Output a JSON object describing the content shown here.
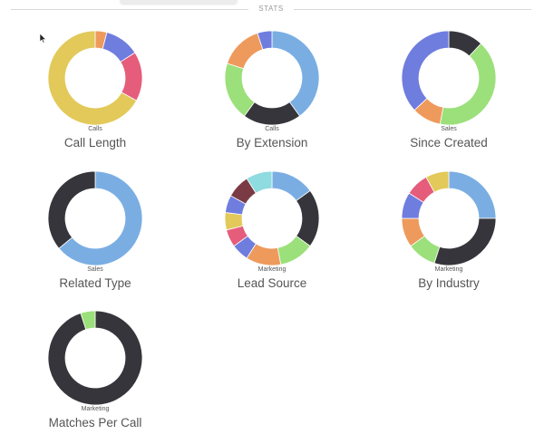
{
  "section": {
    "title": "STATS"
  },
  "colors": {
    "blue": "#7aaee3",
    "dark": "#36353b",
    "green": "#9be07a",
    "orange": "#ee9a5c",
    "indigo": "#6f7ddf",
    "pink": "#e55d7b",
    "yellow": "#e2c95a",
    "maroon": "#7a3b45",
    "cyan": "#8edbe0"
  },
  "charts": [
    {
      "id": "call-length",
      "label": "Calls",
      "title": "Call Length",
      "slices": [
        {
          "value": 0.04,
          "color": "#ee9a5c"
        },
        {
          "value": 0.12,
          "color": "#6f7ddf"
        },
        {
          "value": 0.17,
          "color": "#e55d7b"
        },
        {
          "value": 0.67,
          "color": "#e2c95a"
        }
      ]
    },
    {
      "id": "by-extension",
      "label": "Calls",
      "title": "By Extension",
      "slices": [
        {
          "value": 0.4,
          "color": "#7aaee3"
        },
        {
          "value": 0.2,
          "color": "#36353b"
        },
        {
          "value": 0.2,
          "color": "#9be07a"
        },
        {
          "value": 0.15,
          "color": "#ee9a5c"
        },
        {
          "value": 0.05,
          "color": "#6f7ddf"
        }
      ]
    },
    {
      "id": "since-created",
      "label": "Sales",
      "title": "Since Created",
      "slices": [
        {
          "value": 0.12,
          "color": "#36353b"
        },
        {
          "value": 0.41,
          "color": "#9be07a"
        },
        {
          "value": 0.1,
          "color": "#ee9a5c"
        },
        {
          "value": 0.37,
          "color": "#6f7ddf"
        }
      ]
    },
    {
      "id": "related-type",
      "label": "Sales",
      "title": "Related Type",
      "slices": [
        {
          "value": 0.64,
          "color": "#7aaee3"
        },
        {
          "value": 0.36,
          "color": "#36353b"
        }
      ]
    },
    {
      "id": "lead-source",
      "label": "Marketing",
      "title": "Lead Source",
      "slices": [
        {
          "value": 0.15,
          "color": "#7aaee3"
        },
        {
          "value": 0.2,
          "color": "#36353b"
        },
        {
          "value": 0.12,
          "color": "#9be07a"
        },
        {
          "value": 0.12,
          "color": "#ee9a5c"
        },
        {
          "value": 0.06,
          "color": "#6f7ddf"
        },
        {
          "value": 0.06,
          "color": "#e55d7b"
        },
        {
          "value": 0.06,
          "color": "#e2c95a"
        },
        {
          "value": 0.06,
          "color": "#6f7ddf"
        },
        {
          "value": 0.08,
          "color": "#7a3b45"
        },
        {
          "value": 0.09,
          "color": "#8edbe0"
        }
      ]
    },
    {
      "id": "by-industry",
      "label": "Marketing",
      "title": "By Industry",
      "slices": [
        {
          "value": 0.25,
          "color": "#7aaee3"
        },
        {
          "value": 0.3,
          "color": "#36353b"
        },
        {
          "value": 0.1,
          "color": "#9be07a"
        },
        {
          "value": 0.1,
          "color": "#ee9a5c"
        },
        {
          "value": 0.09,
          "color": "#6f7ddf"
        },
        {
          "value": 0.08,
          "color": "#e55d7b"
        },
        {
          "value": 0.08,
          "color": "#e2c95a"
        }
      ]
    },
    {
      "id": "matches-per-call",
      "label": "Marketing",
      "title": "Matches Per Call",
      "slices": [
        {
          "value": 0.95,
          "color": "#36353b"
        },
        {
          "value": 0.05,
          "color": "#9be07a"
        }
      ]
    }
  ]
}
